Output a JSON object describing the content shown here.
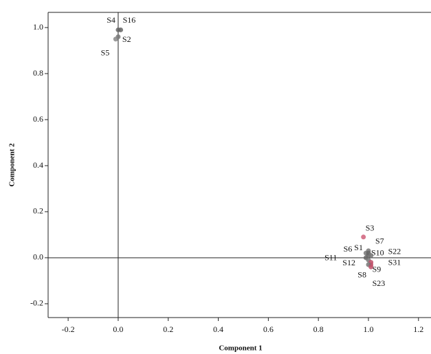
{
  "chart_data": {
    "type": "scatter",
    "x_label": "Component 1",
    "y_label": "Component 2",
    "xlim": [
      -0.28,
      1.25
    ],
    "ylim": [
      -0.26,
      1.066
    ],
    "xticks": [
      -0.2,
      {
        "value": 0,
        "label": "0.0"
      },
      0.2,
      0.4,
      0.6,
      0.8,
      {
        "value": 1,
        "label": "1.0"
      },
      1.2
    ],
    "yticks": [
      -0.2,
      {
        "value": 0,
        "label": "0.0"
      },
      0.2,
      0.4,
      0.6,
      0.8,
      {
        "value": 1,
        "label": "1.0"
      }
    ],
    "point_labels": [
      "S4",
      "S16",
      "S2",
      "S5",
      "S3",
      "S7",
      "S6",
      "S1",
      "S10",
      "S22",
      "S11",
      "S12",
      "S31",
      "S9",
      "S8",
      "S23"
    ],
    "x": [
      0.0,
      0.01,
      0.0,
      -0.01,
      0.98,
      1.0,
      0.99,
      1.0,
      1.0,
      1.01,
      0.99,
      1.0,
      1.01,
      1.01,
      1.0,
      1.01
    ],
    "values": [
      0.99,
      0.99,
      0.96,
      0.95,
      0.09,
      0.03,
      0.02,
      0.02,
      0.01,
      0.01,
      0.0,
      -0.01,
      -0.02,
      -0.03,
      -0.03,
      -0.04
    ],
    "point_colors": [
      "#666666",
      "#666666",
      "#777777",
      "#888888",
      "#d0607a",
      "#777777",
      "#777777",
      "#666666",
      "#666666",
      "#777777",
      "#666666",
      "#777777",
      "#c0506a",
      "#c0506a",
      "#777777",
      "#c0506a"
    ]
  }
}
